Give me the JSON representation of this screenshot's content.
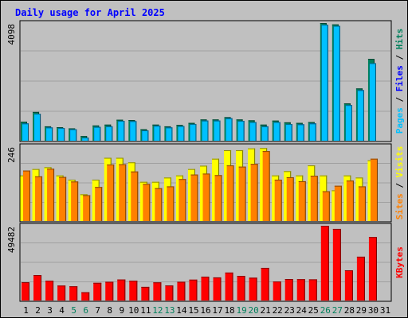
{
  "chart_data": {
    "type": "bar",
    "title": "Daily usage for April 2025",
    "categories": [
      "1",
      "2",
      "3",
      "4",
      "5",
      "6",
      "7",
      "8",
      "9",
      "10",
      "11",
      "12",
      "13",
      "14",
      "15",
      "16",
      "17",
      "18",
      "19",
      "20",
      "21",
      "22",
      "23",
      "24",
      "25",
      "26",
      "27",
      "28",
      "29",
      "30",
      "31"
    ],
    "weekend_days": [
      "5",
      "6",
      "12",
      "13",
      "19",
      "20",
      "26",
      "27"
    ],
    "panels": [
      {
        "id": "hits-files-pages",
        "scale_label": "4098",
        "ymax": 4098,
        "side_labels": [
          "Pages",
          "Files",
          "Hits"
        ],
        "series": [
          {
            "name": "Hits",
            "color": "#00805c",
            "values": [
              660,
              1000,
              500,
              470,
              430,
              160,
              530,
              560,
              730,
              720,
              400,
              560,
              500,
              550,
              620,
              740,
              740,
              820,
              740,
              710,
              560,
              700,
              640,
              620,
              650,
              4098,
              4050,
              1300,
              1820,
              2850
            ]
          },
          {
            "name": "Files",
            "color": "#0000ff",
            "values": [
              600,
              940,
              460,
              440,
              400,
              110,
              480,
              500,
              690,
              680,
              360,
              520,
              460,
              510,
              580,
              700,
              700,
              780,
              690,
              650,
              500,
              650,
              580,
              570,
              600,
              4040,
              4000,
              1240,
              1760,
              2700
            ]
          },
          {
            "name": "Pages",
            "color": "#00c0ff",
            "values": [
              600,
              940,
              460,
              440,
              400,
              110,
              480,
              500,
              690,
              680,
              360,
              520,
              460,
              510,
              580,
              700,
              700,
              780,
              690,
              650,
              500,
              650,
              580,
              570,
              600,
              4040,
              4000,
              1240,
              1760,
              2700
            ]
          }
        ]
      },
      {
        "id": "visits-sites",
        "scale_label": "246",
        "ymax": 246,
        "side_labels": [
          "Sites",
          "Visits"
        ],
        "series": [
          {
            "name": "Visits",
            "color": "#ffff00",
            "values": [
              150,
              171,
              177,
              150,
              136,
              88,
              136,
              208,
              208,
              193,
              129,
              129,
              143,
              150,
              171,
              182,
              205,
              233,
              233,
              239,
              240,
              150,
              164,
              150,
              183,
              150,
              101,
              150,
              143,
              200
            ]
          },
          {
            "name": "Sites",
            "color": "#ff8000",
            "values": [
              166,
              147,
              172,
              145,
              130,
              85,
              112,
              186,
              187,
              163,
              122,
              108,
              114,
              138,
              153,
              156,
              151,
              183,
              179,
              188,
              230,
              136,
              144,
              131,
              149,
              98,
              116,
              133,
              114,
              205
            ]
          }
        ]
      },
      {
        "id": "kbytes",
        "scale_label": "49482",
        "ymax": 49482,
        "side_labels": [
          "KBytes"
        ],
        "series": [
          {
            "name": "KBytes",
            "color": "#ff0000",
            "values": [
              12100,
              16800,
              13100,
              9900,
              9400,
              5500,
              11700,
              12400,
              13900,
              13100,
              9000,
              12000,
              10000,
              12400,
              13800,
              15800,
              15300,
              18500,
              16300,
              15100,
              21600,
              12600,
              14200,
              14100,
              14000,
              49482,
              47400,
              20000,
              29000,
              42000
            ]
          }
        ]
      }
    ]
  },
  "colors": {
    "title": "#0000ff",
    "weekday_tick": "#000000",
    "weekend_tick": "#00805c",
    "plot_bg": "#c0c0c0",
    "grid": "#a0a0a0"
  }
}
